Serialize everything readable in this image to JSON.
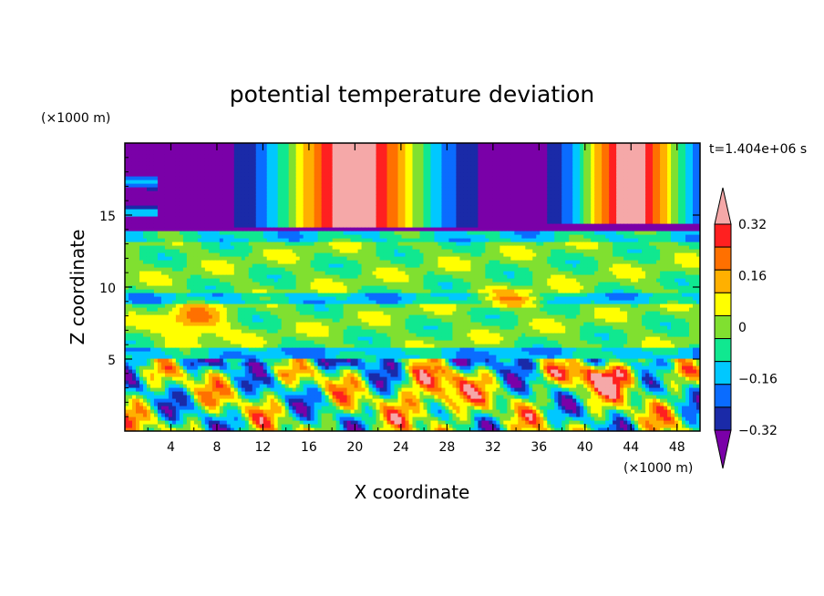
{
  "chart_data": {
    "type": "heatmap",
    "title": "potential temperature deviation",
    "xlabel": "X coordinate",
    "ylabel": "Z coordinate",
    "x_unit": "(×1000 m)",
    "y_unit": "(×1000 m)",
    "time_label": "t=1.404e+06 s",
    "xlim": [
      0,
      50
    ],
    "ylim": [
      0,
      20
    ],
    "x_ticks": [
      "4",
      "8",
      "12",
      "16",
      "20",
      "24",
      "28",
      "32",
      "36",
      "40",
      "44",
      "48"
    ],
    "y_ticks": [
      "5",
      "10",
      "15"
    ],
    "x_tick_values": [
      4,
      8,
      12,
      16,
      20,
      24,
      28,
      32,
      36,
      40,
      44,
      48
    ],
    "y_tick_values": [
      5,
      10,
      15
    ],
    "colorbar": {
      "levels": [
        -0.4,
        -0.32,
        -0.24,
        -0.16,
        -0.08,
        0,
        0.08,
        0.16,
        0.24,
        0.32,
        0.4
      ],
      "tick_labels": [
        "−0.32",
        "−0.16",
        "0",
        "0.16",
        "0.32"
      ],
      "tick_values": [
        -0.32,
        -0.16,
        0,
        0.16,
        0.32
      ],
      "colors": [
        "#7a00a8",
        "#1a2aa8",
        "#0a6cff",
        "#00c8ff",
        "#10e890",
        "#80e030",
        "#ffff00",
        "#ffb000",
        "#ff7000",
        "#ff2020",
        "#f5a8a8"
      ],
      "extend": "both"
    },
    "field_description": "2D field; low values (deep purple/blue) in z 14-20 and 0-5 bands, high values (pink) plumes near x 12-28 and x 40-48 at top, mixed green/cyan mid layers z 5-14"
  }
}
